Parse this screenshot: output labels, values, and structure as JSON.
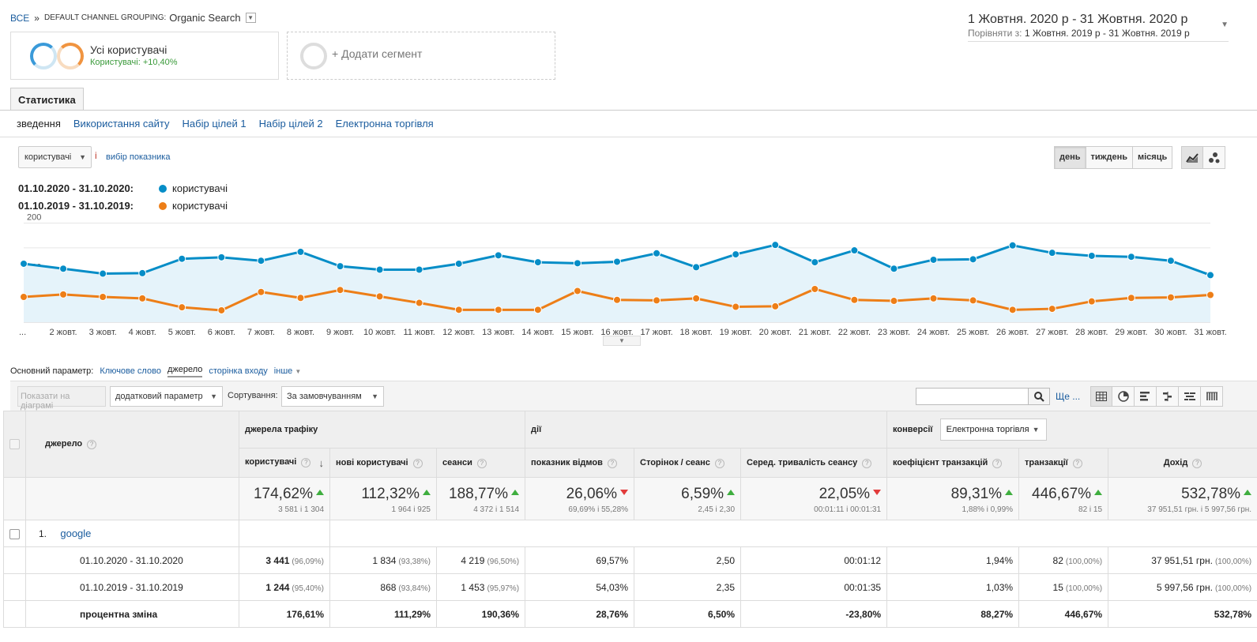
{
  "breadcrumb": {
    "all": "ВСЕ",
    "sep": "»",
    "group_label": "DEFAULT CHANNEL GROUPING:",
    "group_value": "Organic Search"
  },
  "daterange": {
    "main": "1 Жовтня. 2020 р  -  31 Жовтня. 2020 р",
    "compare_label": "Порівняти з:",
    "compare_value": "1 Жовтня. 2019 р  -  31 Жовтня. 2019 р"
  },
  "segments": {
    "all_title": "Усі користувачі",
    "all_sub": "Користувачі: +10,40%",
    "add": "+ Додати сегмент"
  },
  "tabs": {
    "stat": "Статистика"
  },
  "subnav": [
    "зведення",
    "Використання сайту",
    "Набір цілей 1",
    "Набір цілей 2",
    "Електронна торгівля"
  ],
  "controls": {
    "metric": "користувачі",
    "vs": "і",
    "pick_metric": "вибір показника",
    "periods": [
      "день",
      "тиждень",
      "місяць"
    ]
  },
  "legend": [
    {
      "label": "01.10.2020 - 31.10.2020:",
      "name": "користувачі",
      "color": "#058dc7"
    },
    {
      "label": "01.10.2019 - 31.10.2019:",
      "name": "користувачі",
      "color": "#ed7e17"
    }
  ],
  "chart_data": {
    "type": "line",
    "x": [
      "...",
      "2 жовт.",
      "3 жовт.",
      "4 жовт.",
      "5 жовт.",
      "6 жовт.",
      "7 жовт.",
      "8 жовт.",
      "9 жовт.",
      "10 жовт.",
      "11 жовт.",
      "12 жовт.",
      "13 жовт.",
      "14 жовт.",
      "15 жовт.",
      "16 жовт.",
      "17 жовт.",
      "18 жовт.",
      "19 жовт.",
      "20 жовт.",
      "21 жовт.",
      "22 жовт.",
      "23 жовт.",
      "24 жовт.",
      "25 жовт.",
      "26 жовт.",
      "27 жовт.",
      "28 жовт.",
      "29 жовт.",
      "30 жовт.",
      "31 жовт."
    ],
    "yticks": [
      "100",
      "200"
    ],
    "ylim": [
      0,
      220
    ],
    "series": [
      {
        "name": "користувачі",
        "color": "#058dc7",
        "values": [
          118,
          108,
          98,
          99,
          128,
          131,
          124,
          142,
          113,
          106,
          106,
          118,
          135,
          121,
          119,
          122,
          139,
          111,
          137,
          156,
          121,
          145,
          108,
          126,
          127,
          155,
          140,
          134,
          132,
          124,
          95
        ]
      },
      {
        "name": "користувачі",
        "color": "#ed7e17",
        "values": [
          51,
          56,
          51,
          48,
          30,
          24,
          61,
          49,
          65,
          52,
          39,
          25,
          25,
          25,
          63,
          45,
          44,
          48,
          31,
          32,
          67,
          45,
          43,
          48,
          44,
          25,
          27,
          42,
          49,
          50,
          55
        ]
      }
    ]
  },
  "primary_dim": {
    "label": "Основний параметр:",
    "options": [
      "Ключове слово",
      "джерело",
      "сторінка входу",
      "інше"
    ]
  },
  "toolbar": {
    "plot": "Показати на діаграмі",
    "secondary": "додатковий параметр",
    "sort_label": "Сортування:",
    "sort_value": "За замовчуванням",
    "more": "Ще ..."
  },
  "table": {
    "dim_header": "джерело",
    "group_traffic": "джерела трафіку",
    "group_actions": "дії",
    "group_conv": "конверсії",
    "conv_value": "Електронна торгівля",
    "columns": [
      "користувачі",
      "нові користувачі",
      "сеанси",
      "показник відмов",
      "Сторінок / сеанс",
      "Серед. тривалість сеансу",
      "коефіцієнт транзакцій",
      "транзакції",
      "Дохід"
    ],
    "summary": [
      {
        "big": "174,62%",
        "small": "3 581 і 1 304",
        "dir": "up"
      },
      {
        "big": "112,32%",
        "small": "1 964 і 925",
        "dir": "up"
      },
      {
        "big": "188,77%",
        "small": "4 372 і 1 514",
        "dir": "up"
      },
      {
        "big": "26,06%",
        "small": "69,69% і 55,28%",
        "dir": "down"
      },
      {
        "big": "6,59%",
        "small": "2,45 і 2,30",
        "dir": "up"
      },
      {
        "big": "22,05%",
        "small": "00:01:11 і 00:01:31",
        "dir": "down"
      },
      {
        "big": "89,31%",
        "small": "1,88% і 0,99%",
        "dir": "up"
      },
      {
        "big": "446,67%",
        "small": "82 і 15",
        "dir": "up"
      },
      {
        "big": "532,78%",
        "small": "37 951,51 грн. і 5 997,56 грн.",
        "dir": "up"
      }
    ],
    "row_index": "1.",
    "row_name": "google",
    "rows": [
      {
        "label": "01.10.2020 - 31.10.2020",
        "cells": [
          [
            "3 441",
            "(96,09%)"
          ],
          [
            "1 834",
            "(93,38%)"
          ],
          [
            "4 219",
            "(96,50%)"
          ],
          [
            "69,57%",
            ""
          ],
          [
            "2,50",
            ""
          ],
          [
            "00:01:12",
            ""
          ],
          [
            "1,94%",
            ""
          ],
          [
            "82",
            "(100,00%)"
          ],
          [
            "37 951,51 грн.",
            "(100,00%)"
          ]
        ]
      },
      {
        "label": "01.10.2019 - 31.10.2019",
        "cells": [
          [
            "1 244",
            "(95,40%)"
          ],
          [
            "868",
            "(93,84%)"
          ],
          [
            "1 453",
            "(95,97%)"
          ],
          [
            "54,03%",
            ""
          ],
          [
            "2,35",
            ""
          ],
          [
            "00:01:35",
            ""
          ],
          [
            "1,03%",
            ""
          ],
          [
            "15",
            "(100,00%)"
          ],
          [
            "5 997,56 грн.",
            "(100,00%)"
          ]
        ]
      },
      {
        "label": "процентна зміна",
        "bold": true,
        "cells": [
          [
            "176,61%",
            ""
          ],
          [
            "111,29%",
            ""
          ],
          [
            "190,36%",
            ""
          ],
          [
            "28,76%",
            ""
          ],
          [
            "6,50%",
            ""
          ],
          [
            "-23,80%",
            ""
          ],
          [
            "88,27%",
            ""
          ],
          [
            "446,67%",
            ""
          ],
          [
            "532,78%",
            ""
          ]
        ]
      }
    ]
  }
}
